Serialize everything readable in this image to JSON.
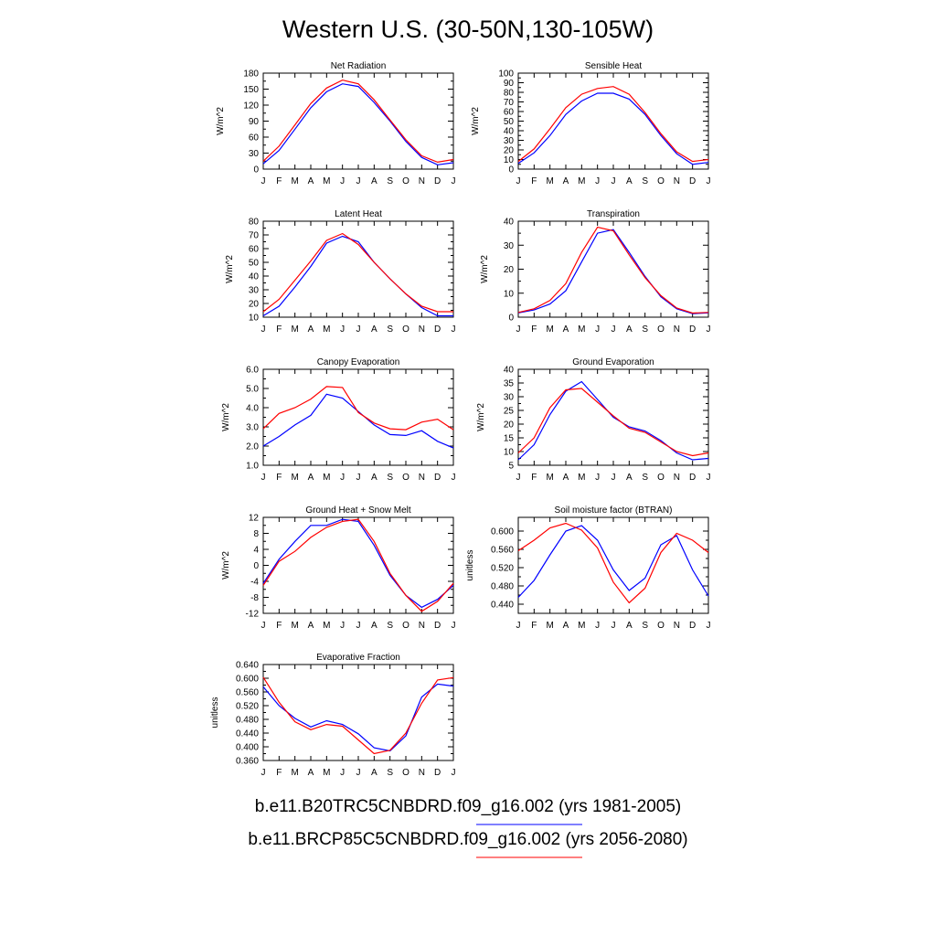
{
  "figure_title": "Western U.S. (30-50N,130-105W)",
  "colors": {
    "case1": "#0000ff",
    "case2": "#ff0000"
  },
  "legend": {
    "case1": "b.e11.B20TRC5CNBDRD.f09_g16.002 (yrs 1981-2005)",
    "case2": "b.e11.BRCP85C5CNBDRD.f09_g16.002 (yrs 2056-2080)"
  },
  "chart_data": [
    {
      "type": "line",
      "title": "Net Radiation",
      "ylabel": "W/m^2",
      "categories": [
        "J",
        "F",
        "M",
        "A",
        "M",
        "J",
        "J",
        "A",
        "S",
        "O",
        "N",
        "D",
        "J"
      ],
      "ylim": [
        0,
        180
      ],
      "yticks": [
        "0",
        "30",
        "60",
        "90",
        "120",
        "150",
        "180"
      ],
      "series": [
        {
          "values": [
            10,
            35,
            75,
            115,
            145,
            160,
            155,
            125,
            90,
            52,
            22,
            8,
            12
          ]
        },
        {
          "values": [
            15,
            43,
            83,
            123,
            152,
            167,
            160,
            130,
            92,
            55,
            25,
            13,
            18
          ]
        }
      ]
    },
    {
      "type": "line",
      "title": "Sensible Heat",
      "ylabel": "W/m^2",
      "categories": [
        "J",
        "F",
        "M",
        "A",
        "M",
        "J",
        "J",
        "A",
        "S",
        "O",
        "N",
        "D",
        "J"
      ],
      "ylim": [
        0,
        100
      ],
      "yticks": [
        "0",
        "10",
        "20",
        "30",
        "40",
        "50",
        "60",
        "70",
        "80",
        "90",
        "100"
      ],
      "series": [
        {
          "values": [
            6,
            17,
            35,
            57,
            71,
            79,
            79,
            73,
            57,
            35,
            16,
            5,
            7
          ]
        },
        {
          "values": [
            8,
            21,
            42,
            64,
            78,
            84,
            86,
            78,
            59,
            37,
            18,
            8,
            10
          ]
        }
      ]
    },
    {
      "type": "line",
      "title": "Latent Heat",
      "ylabel": "W/m^2",
      "categories": [
        "J",
        "F",
        "M",
        "A",
        "M",
        "J",
        "J",
        "A",
        "S",
        "O",
        "N",
        "D",
        "J"
      ],
      "ylim": [
        10,
        80
      ],
      "yticks": [
        "10",
        "20",
        "30",
        "40",
        "50",
        "60",
        "70",
        "80"
      ],
      "series": [
        {
          "values": [
            11,
            18,
            32,
            47,
            64,
            69,
            65,
            50,
            38,
            27,
            17,
            11,
            11
          ]
        },
        {
          "values": [
            14,
            23,
            37,
            51,
            66,
            71,
            63,
            50,
            38,
            27,
            18,
            14,
            14
          ]
        }
      ]
    },
    {
      "type": "line",
      "title": "Transpiration",
      "ylabel": "W/m^2",
      "categories": [
        "J",
        "F",
        "M",
        "A",
        "M",
        "J",
        "J",
        "A",
        "S",
        "O",
        "N",
        "D",
        "J"
      ],
      "ylim": [
        0,
        40
      ],
      "yticks": [
        "0",
        "10",
        "20",
        "30",
        "40"
      ],
      "series": [
        {
          "values": [
            1.8,
            3.0,
            5.5,
            11,
            23,
            35,
            36.5,
            27,
            17,
            8.5,
            3.5,
            1.5,
            1.8
          ]
        },
        {
          "values": [
            2.0,
            3.5,
            7.0,
            14,
            27,
            37.5,
            36,
            26,
            16.5,
            9,
            3.8,
            1.7,
            2.0
          ]
        }
      ]
    },
    {
      "type": "line",
      "title": "Canopy Evaporation",
      "ylabel": "W/m^2",
      "categories": [
        "J",
        "F",
        "M",
        "A",
        "M",
        "J",
        "J",
        "A",
        "S",
        "O",
        "N",
        "D",
        "J"
      ],
      "ylim": [
        1.0,
        6.0
      ],
      "yticks": [
        "1.0",
        "2.0",
        "3.0",
        "4.0",
        "5.0",
        "6.0"
      ],
      "series": [
        {
          "values": [
            2.0,
            2.5,
            3.1,
            3.6,
            4.7,
            4.5,
            3.8,
            3.1,
            2.6,
            2.55,
            2.8,
            2.25,
            1.9
          ]
        },
        {
          "values": [
            2.9,
            3.7,
            4.0,
            4.45,
            5.1,
            5.05,
            3.75,
            3.2,
            2.9,
            2.85,
            3.25,
            3.4,
            2.85
          ]
        }
      ]
    },
    {
      "type": "line",
      "title": "Ground Evaporation",
      "ylabel": "W/m^2",
      "categories": [
        "J",
        "F",
        "M",
        "A",
        "M",
        "J",
        "J",
        "A",
        "S",
        "O",
        "N",
        "D",
        "J"
      ],
      "ylim": [
        5,
        40
      ],
      "yticks": [
        "5",
        "10",
        "15",
        "20",
        "25",
        "30",
        "35",
        "40"
      ],
      "series": [
        {
          "values": [
            7,
            12.5,
            23.5,
            32,
            35.5,
            29,
            22.5,
            19,
            17.5,
            14,
            9.5,
            7,
            7.5
          ]
        },
        {
          "values": [
            9.5,
            15,
            26,
            32.5,
            33,
            28,
            23,
            18.5,
            17,
            13.5,
            10,
            8.5,
            9.5
          ]
        }
      ]
    },
    {
      "type": "line",
      "title": "Ground Heat + Snow Melt",
      "ylabel": "W/m^2",
      "categories": [
        "J",
        "F",
        "M",
        "A",
        "M",
        "J",
        "J",
        "A",
        "S",
        "O",
        "N",
        "D",
        "J"
      ],
      "ylim": [
        -12,
        12
      ],
      "yticks": [
        "-12",
        "-8",
        "-4",
        "0",
        "4",
        "8",
        "12"
      ],
      "series": [
        {
          "values": [
            -4.5,
            1.5,
            6,
            10,
            10,
            11.5,
            11,
            5,
            -2.5,
            -7.5,
            -10.5,
            -8.5,
            -5
          ]
        },
        {
          "values": [
            -5,
            1,
            3.5,
            7,
            9.5,
            11,
            11.5,
            6,
            -2,
            -7.5,
            -11.5,
            -9,
            -4.5
          ]
        }
      ]
    },
    {
      "type": "line",
      "title": "Soil moisture factor (BTRAN)",
      "ylabel": "unitless",
      "categories": [
        "J",
        "F",
        "M",
        "A",
        "M",
        "J",
        "J",
        "A",
        "S",
        "O",
        "N",
        "D",
        "J"
      ],
      "ylim": [
        0.42,
        0.63
      ],
      "yticks": [
        "0.440",
        "0.480",
        "0.520",
        "0.560",
        "0.600"
      ],
      "series": [
        {
          "values": [
            0.455,
            0.492,
            0.548,
            0.6,
            0.612,
            0.58,
            0.515,
            0.47,
            0.497,
            0.57,
            0.59,
            0.515,
            0.458
          ]
        },
        {
          "values": [
            0.557,
            0.58,
            0.607,
            0.617,
            0.602,
            0.563,
            0.488,
            0.443,
            0.475,
            0.553,
            0.595,
            0.58,
            0.553
          ]
        }
      ]
    },
    {
      "type": "line",
      "title": "Evaporative Fraction",
      "ylabel": "unitless",
      "categories": [
        "J",
        "F",
        "M",
        "A",
        "M",
        "J",
        "J",
        "A",
        "S",
        "O",
        "N",
        "D",
        "J"
      ],
      "ylim": [
        0.36,
        0.64
      ],
      "yticks": [
        "0.360",
        "0.400",
        "0.440",
        "0.480",
        "0.520",
        "0.560",
        "0.600",
        "0.640"
      ],
      "series": [
        {
          "values": [
            0.575,
            0.52,
            0.483,
            0.458,
            0.476,
            0.465,
            0.438,
            0.397,
            0.388,
            0.432,
            0.545,
            0.583,
            0.577
          ]
        },
        {
          "values": [
            0.603,
            0.53,
            0.473,
            0.45,
            0.465,
            0.46,
            0.42,
            0.38,
            0.39,
            0.44,
            0.527,
            0.595,
            0.602
          ]
        }
      ]
    }
  ]
}
